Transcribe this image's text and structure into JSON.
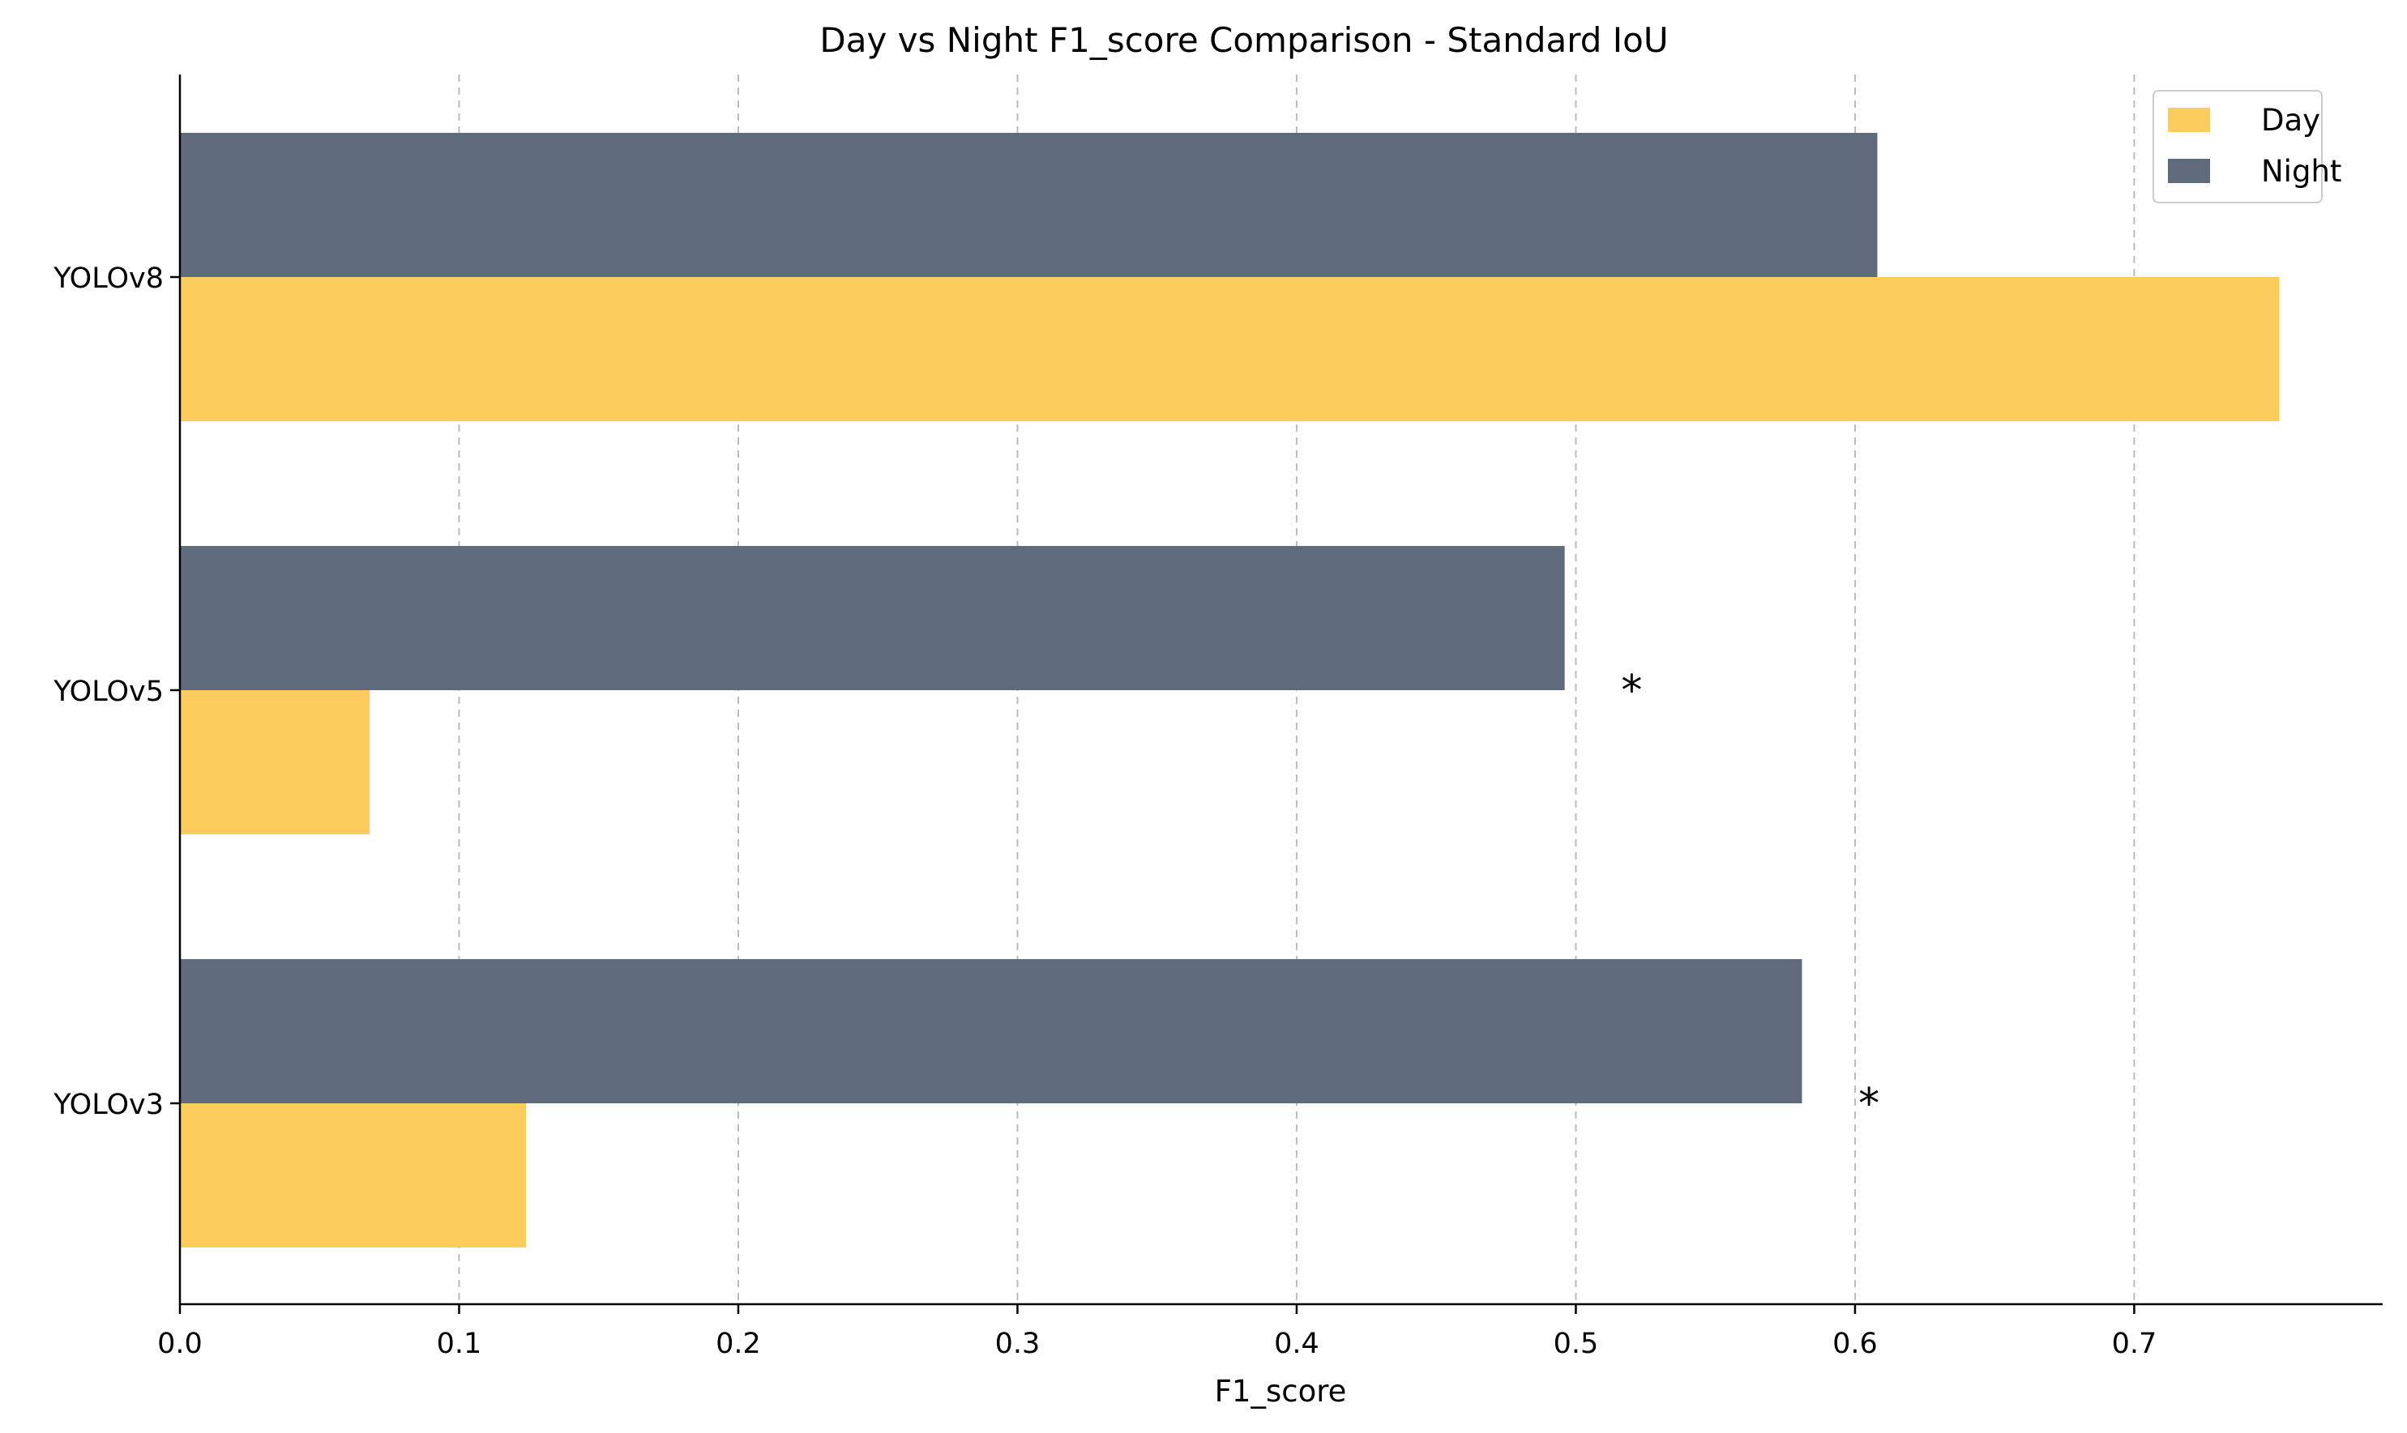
{
  "chart_data": {
    "type": "bar",
    "orientation": "horizontal",
    "title": "Day vs Night F1_score Comparison - Standard IoU",
    "xlabel": "F1_score",
    "ylabel": "",
    "categories": [
      "YOLOv8",
      "YOLOv5",
      "YOLOv3"
    ],
    "series": [
      {
        "name": "Night",
        "color": "#5f6b7c",
        "values": [
          0.608,
          0.496,
          0.581
        ]
      },
      {
        "name": "Day",
        "color": "#fccd5c",
        "values": [
          0.752,
          0.068,
          0.124
        ]
      }
    ],
    "xlim": [
      0,
      0.789
    ],
    "xticks": [
      0.0,
      0.1,
      0.2,
      0.3,
      0.4,
      0.5,
      0.6,
      0.7
    ],
    "xtick_labels": [
      "0.0",
      "0.1",
      "0.2",
      "0.3",
      "0.4",
      "0.5",
      "0.6",
      "0.7"
    ],
    "grid": "x-dashed",
    "legend": {
      "placement": "top-right",
      "entries": [
        {
          "label": "Day",
          "color": "#fccd5c"
        },
        {
          "label": "Night",
          "color": "#5f6b7c"
        }
      ]
    },
    "annotations": [
      {
        "text": "*",
        "category": "YOLOv5",
        "x": 0.52
      },
      {
        "text": "*",
        "category": "YOLOv3",
        "x": 0.605
      }
    ]
  }
}
